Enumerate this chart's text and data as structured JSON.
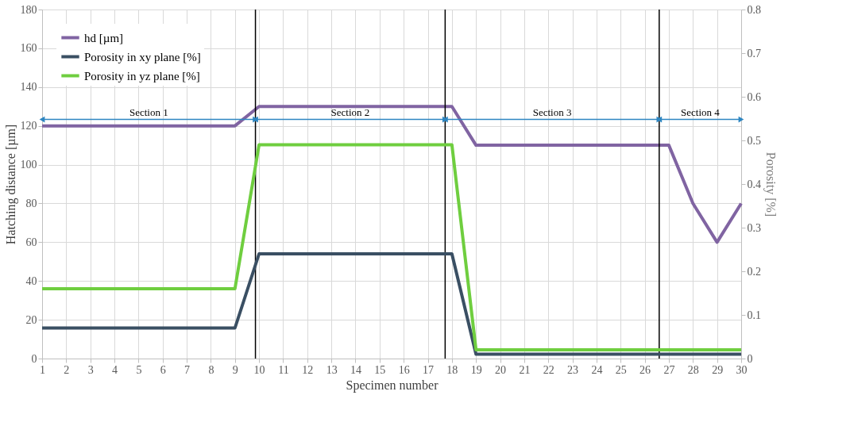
{
  "chart_data": {
    "type": "line",
    "xlabel": "Specimen number",
    "ylabel": "Hatching distance [µm]",
    "y2label": "Porosity [%]",
    "x": [
      1,
      2,
      3,
      4,
      5,
      6,
      7,
      8,
      9,
      10,
      11,
      12,
      13,
      14,
      15,
      16,
      17,
      18,
      19,
      20,
      21,
      22,
      23,
      24,
      25,
      26,
      27,
      28,
      29,
      30
    ],
    "series": [
      {
        "name": "hd [µm]",
        "color": "#8064a2",
        "values": [
          120,
          120,
          120,
          120,
          120,
          120,
          120,
          120,
          120,
          130,
          130,
          130,
          130,
          130,
          130,
          130,
          130,
          130,
          110,
          110,
          110,
          110,
          110,
          110,
          110,
          110,
          110,
          80,
          60,
          80
        ]
      },
      {
        "name": "Porosity in xy plane [%]",
        "color": "#3a4f63",
        "axis": "y2",
        "values": [
          0.07,
          0.07,
          0.07,
          0.07,
          0.07,
          0.07,
          0.07,
          0.07,
          0.07,
          0.24,
          0.24,
          0.24,
          0.24,
          0.24,
          0.24,
          0.24,
          0.24,
          0.24,
          0.01,
          0.01,
          0.01,
          0.01,
          0.01,
          0.01,
          0.01,
          0.01,
          0.01,
          0.01,
          0.01,
          0.01
        ]
      },
      {
        "name": "Porosity in yz plane [%]",
        "color": "#6fce3f",
        "axis": "y2",
        "values": [
          0.16,
          0.16,
          0.16,
          0.16,
          0.16,
          0.16,
          0.16,
          0.16,
          0.16,
          0.49,
          0.49,
          0.49,
          0.49,
          0.49,
          0.49,
          0.49,
          0.49,
          0.49,
          0.02,
          0.02,
          0.02,
          0.02,
          0.02,
          0.02,
          0.02,
          0.02,
          0.02,
          0.02,
          0.02,
          0.02
        ]
      }
    ],
    "xlim": [
      1,
      30
    ],
    "xticks": [
      1,
      2,
      3,
      4,
      5,
      6,
      7,
      8,
      9,
      10,
      11,
      12,
      13,
      14,
      15,
      16,
      17,
      18,
      19,
      20,
      21,
      22,
      23,
      24,
      25,
      26,
      27,
      28,
      29,
      30
    ],
    "ylim": [
      0,
      180
    ],
    "yticks": [
      0,
      20,
      40,
      60,
      80,
      100,
      120,
      140,
      160,
      180
    ],
    "y2lim": [
      0,
      0.8
    ],
    "y2ticks": [
      {
        "value": 0,
        "label": "0"
      },
      0.1,
      0.2,
      0.3,
      0.4,
      0.5,
      0.6,
      0.7,
      0.8
    ],
    "ref_lines": [
      {
        "axis": "x",
        "value": 9.85,
        "color": "#000000"
      },
      {
        "axis": "x",
        "value": 17.72,
        "color": "#000000"
      },
      {
        "axis": "x",
        "value": 26.6,
        "color": "#000000"
      }
    ],
    "annotations": [
      "Section 1",
      "Section 2",
      "Section 3",
      "Section 4"
    ],
    "grid": true,
    "legend": "top left",
    "marker": "none",
    "line_style": "solid"
  }
}
